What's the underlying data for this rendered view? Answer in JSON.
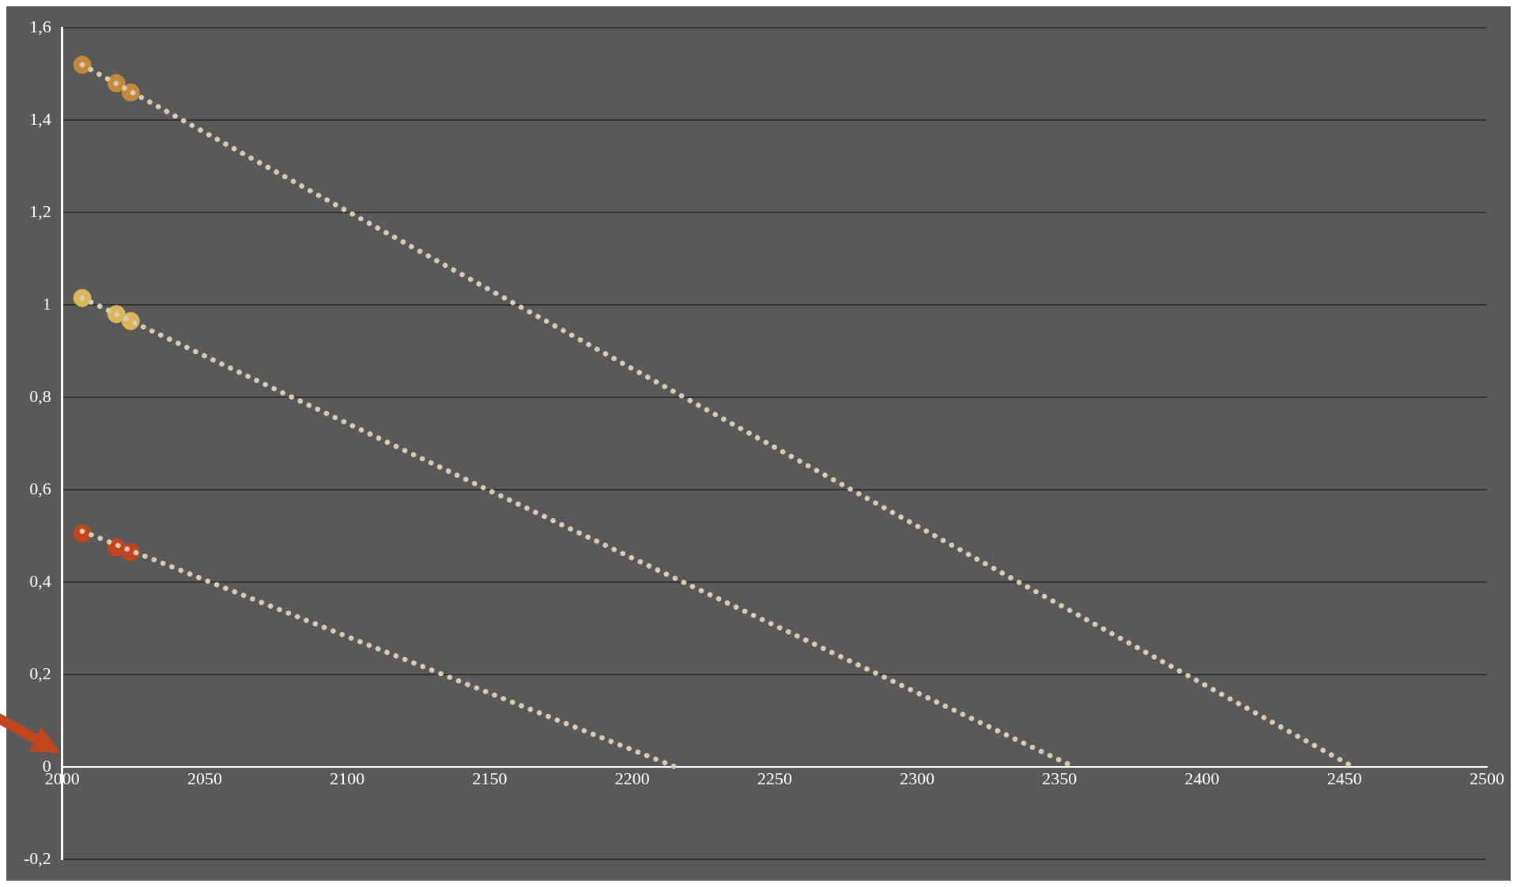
{
  "chart_data": {
    "type": "scatter",
    "xlim": [
      2000,
      2500
    ],
    "xticks": [
      2000,
      2050,
      2100,
      2150,
      2200,
      2250,
      2300,
      2350,
      2400,
      2450,
      2500
    ],
    "ylim": [
      -0.2,
      1.6
    ],
    "yticks": [
      {
        "value": -0.2,
        "label": "-0,2"
      },
      0,
      {
        "value": 0.2,
        "label": "0,2"
      },
      {
        "value": 0.4,
        "label": "0,4"
      },
      {
        "value": 0.6,
        "label": "0,6"
      },
      {
        "value": 0.8,
        "label": "0,8"
      },
      1,
      {
        "value": 1.2,
        "label": "1,2"
      },
      {
        "value": 1.4,
        "label": "1,4"
      },
      {
        "value": 1.6,
        "label": "1,6"
      }
    ],
    "grid": "y",
    "legend": false,
    "series": [
      {
        "type": "line",
        "color": "#d8ccb4",
        "line_style": "dotted",
        "marker": "none",
        "x": [
          2007,
          2453
        ],
        "values": [
          1.52,
          0
        ]
      },
      {
        "type": "line",
        "color": "#d8ccb4",
        "line_style": "dotted",
        "marker": "none",
        "x": [
          2007,
          2355
        ],
        "values": [
          1.015,
          0
        ]
      },
      {
        "type": "line",
        "color": "#d8ccb4",
        "line_style": "dotted",
        "marker": "none",
        "x": [
          2007,
          2215
        ],
        "values": [
          0.51,
          0
        ]
      },
      {
        "type": "scatter",
        "color": "#c48a3c",
        "marker": "circle",
        "x": [
          2007,
          2019,
          2024
        ],
        "values": [
          1.52,
          1.48,
          1.46
        ]
      },
      {
        "type": "scatter",
        "color": "#d9b75a",
        "marker": "circle",
        "x": [
          2007,
          2019,
          2024
        ],
        "values": [
          1.015,
          0.98,
          0.965
        ]
      },
      {
        "type": "scatter",
        "color": "#c2451e",
        "marker": "circle",
        "x": [
          2007,
          2019,
          2024
        ],
        "values": [
          0.505,
          0.475,
          0.465
        ]
      }
    ]
  }
}
